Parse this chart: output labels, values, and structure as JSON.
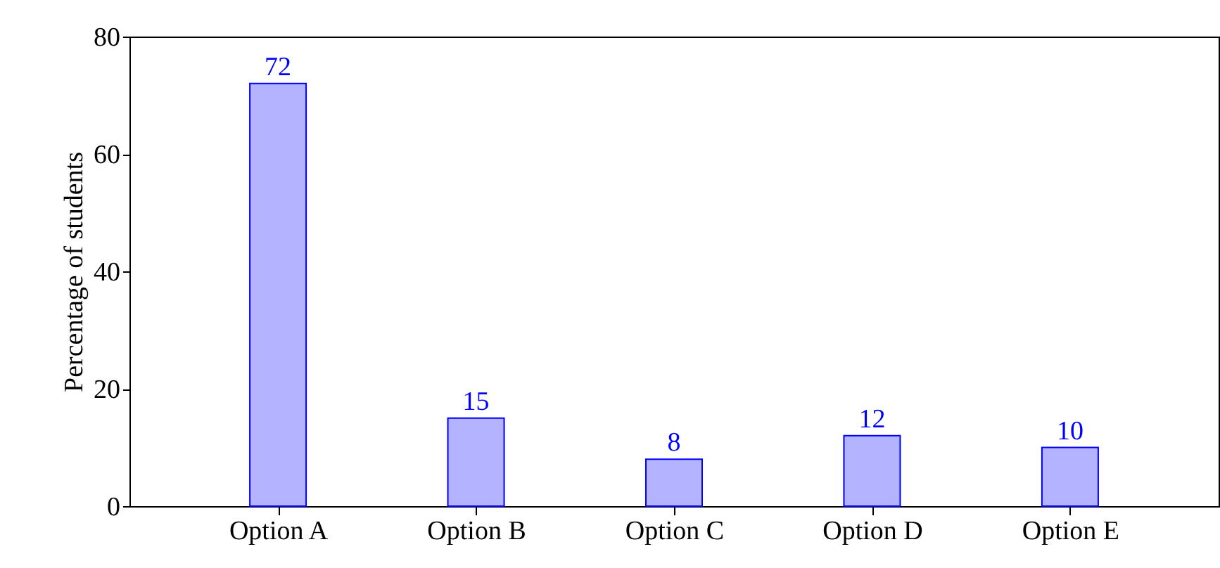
{
  "chart_data": {
    "type": "bar",
    "ylabel": "Percentage of students",
    "categories": [
      "Option A",
      "Option B",
      "Option C",
      "Option D",
      "Option E"
    ],
    "values": [
      72,
      15,
      8,
      12,
      10
    ],
    "color": "#b3b3ff",
    "ylim": [
      0,
      80
    ],
    "yticks": [
      0,
      20,
      40,
      60,
      80
    ],
    "data_labels": true
  }
}
